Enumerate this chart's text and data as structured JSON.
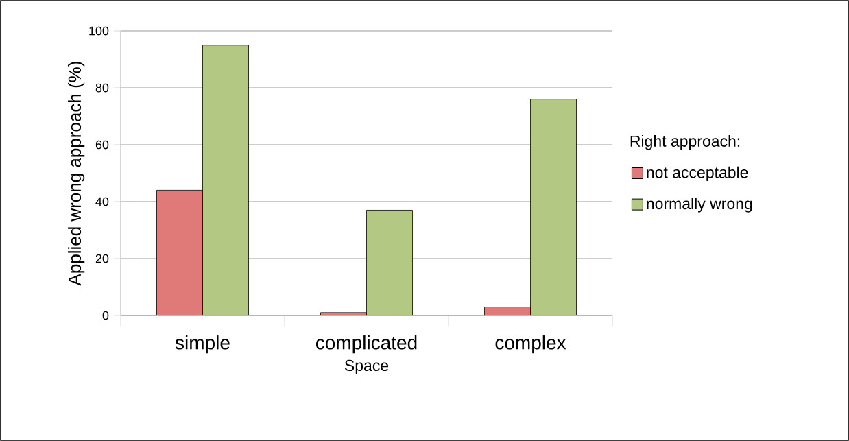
{
  "chart_data": {
    "type": "bar",
    "xlabel": "Space",
    "ylabel": "Applied wrong approach (%)",
    "legend_title": "Right approach:",
    "categories": [
      "simple",
      "complicated",
      "complex"
    ],
    "series": [
      {
        "name": "not acceptable",
        "color": "#e07a78",
        "values": [
          44,
          1,
          3
        ]
      },
      {
        "name": "normally wrong",
        "color": "#b3c883",
        "values": [
          95,
          37,
          76
        ]
      }
    ],
    "ylim": [
      0,
      100
    ],
    "yticks": [
      0,
      20,
      40,
      60,
      80,
      100
    ],
    "grid": "y",
    "legend": "right"
  }
}
